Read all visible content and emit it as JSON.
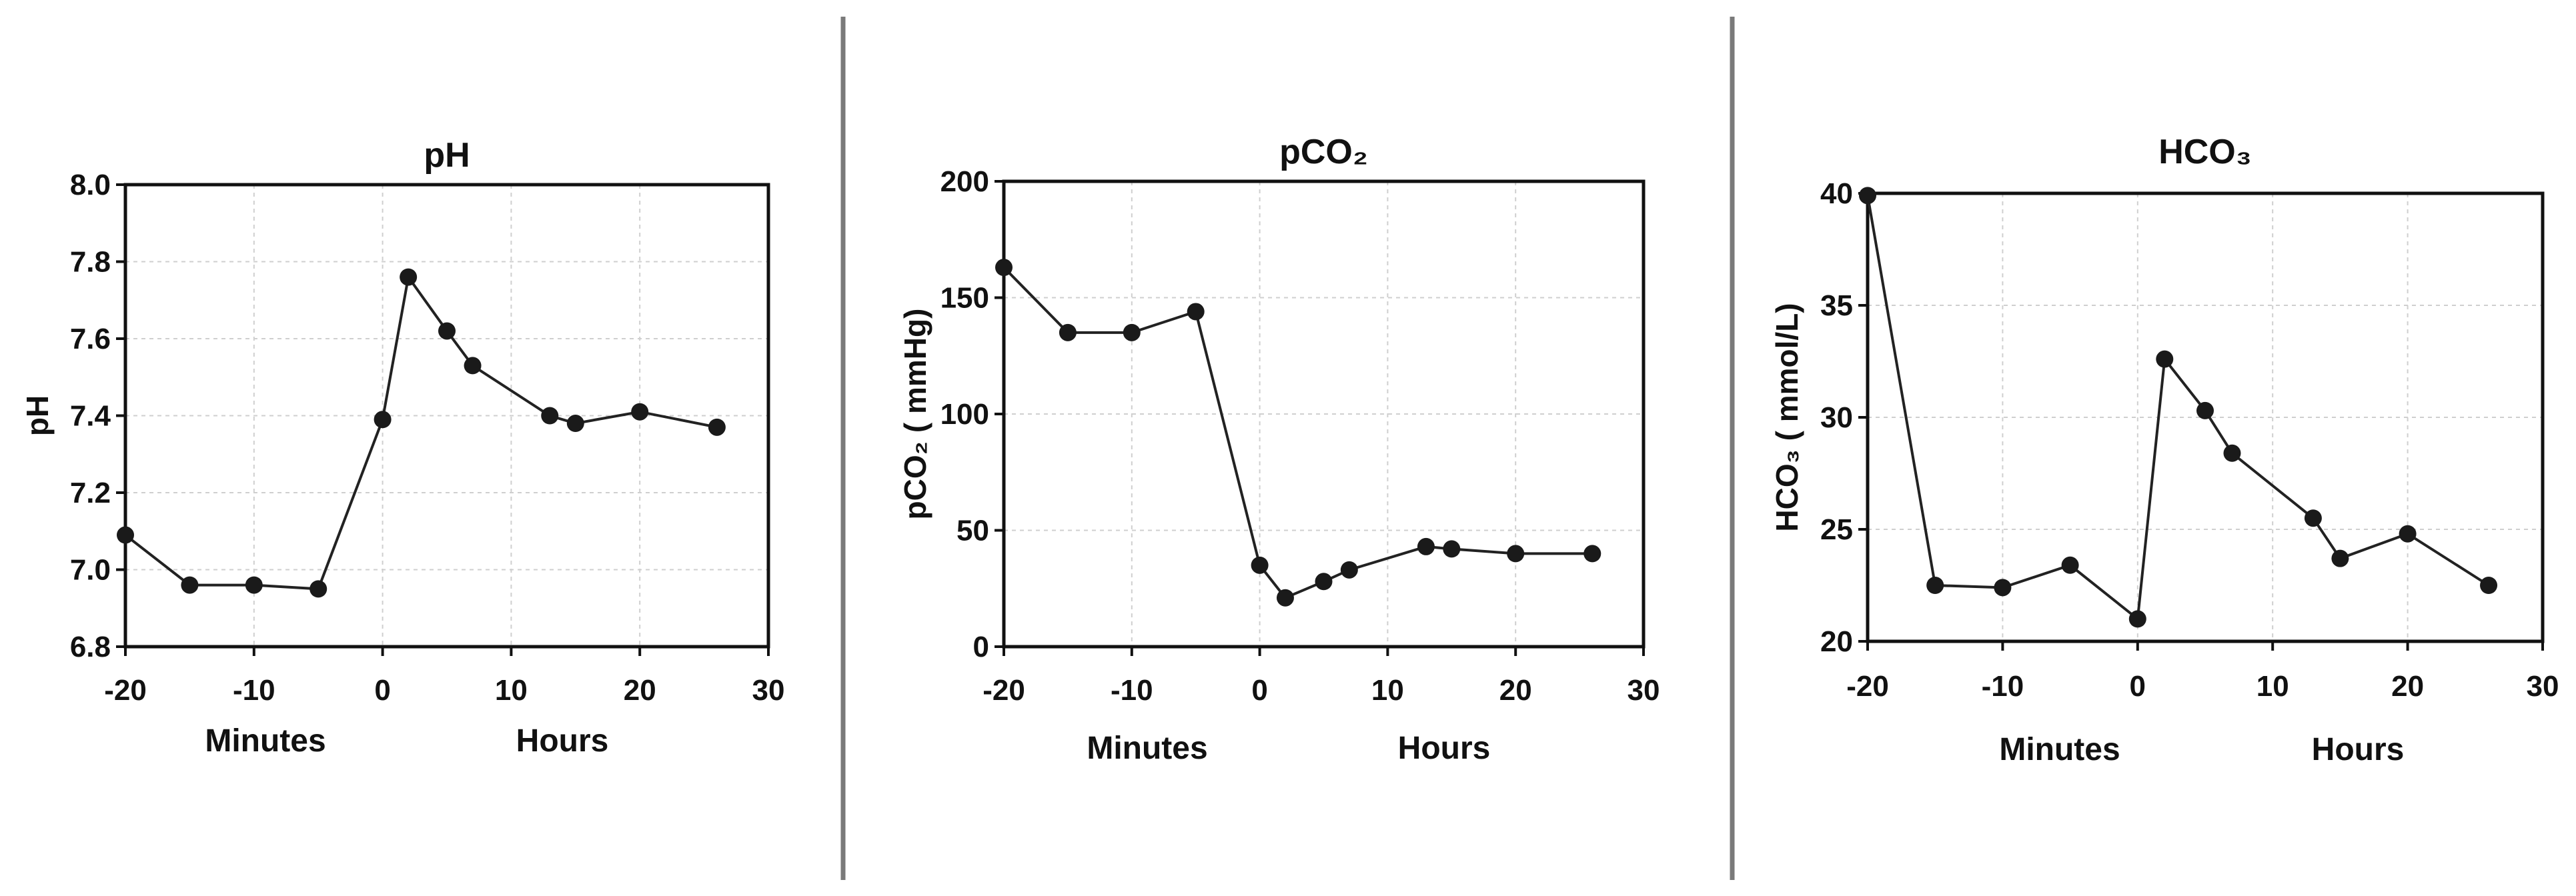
{
  "chart_data": [
    {
      "type": "line",
      "title": "pH",
      "ylabel": "pH",
      "xlim": [
        -20,
        30
      ],
      "ylim": [
        6.8,
        8.0
      ],
      "xticks": [
        "-20",
        "-10",
        "0",
        "10",
        "20",
        "30"
      ],
      "yticks": [
        "6.8",
        "7.0",
        "7.2",
        "7.4",
        "7.6",
        "7.8",
        "8.0"
      ],
      "x_sublabels": [
        "Minutes",
        "Hours"
      ],
      "grid": true,
      "series": [
        {
          "name": "pH",
          "x": [
            -20,
            -15,
            -10,
            -5,
            0,
            2,
            5,
            7,
            13,
            15,
            20,
            26
          ],
          "values": [
            7.09,
            6.96,
            6.96,
            6.95,
            7.39,
            7.76,
            7.62,
            7.53,
            7.4,
            7.38,
            7.41,
            7.37
          ]
        }
      ]
    },
    {
      "type": "line",
      "title": "pCO₂",
      "ylabel": "pCO₂ ( mmHg)",
      "xlim": [
        -20,
        30
      ],
      "ylim": [
        0,
        200
      ],
      "xticks": [
        "-20",
        "-10",
        "0",
        "10",
        "20",
        "30"
      ],
      "yticks": [
        "0",
        "50",
        "100",
        "150",
        "200"
      ],
      "x_sublabels": [
        "Minutes",
        "Hours"
      ],
      "grid": true,
      "series": [
        {
          "name": "pCO₂",
          "x": [
            -20,
            -15,
            -10,
            -5,
            0,
            2,
            5,
            7,
            13,
            15,
            20,
            26
          ],
          "values": [
            163,
            135,
            135,
            144,
            35,
            21,
            28,
            33,
            43,
            42,
            40,
            40
          ]
        }
      ]
    },
    {
      "type": "line",
      "title": "HCO₃",
      "ylabel": "HCO₃ ( mmol/L)",
      "xlim": [
        -20,
        30
      ],
      "ylim": [
        20,
        40
      ],
      "xticks": [
        "-20",
        "-10",
        "0",
        "10",
        "20",
        "30"
      ],
      "yticks": [
        "20",
        "25",
        "30",
        "35",
        "40"
      ],
      "x_sublabels": [
        "Minutes",
        "Hours"
      ],
      "grid": true,
      "series": [
        {
          "name": "HCO₃",
          "x": [
            -20,
            -15,
            -10,
            -5,
            0,
            2,
            5,
            7,
            13,
            15,
            20,
            26
          ],
          "values": [
            39.9,
            22.5,
            22.4,
            23.4,
            21.0,
            32.6,
            30.3,
            28.4,
            25.5,
            23.7,
            24.8,
            22.5
          ]
        }
      ]
    }
  ]
}
